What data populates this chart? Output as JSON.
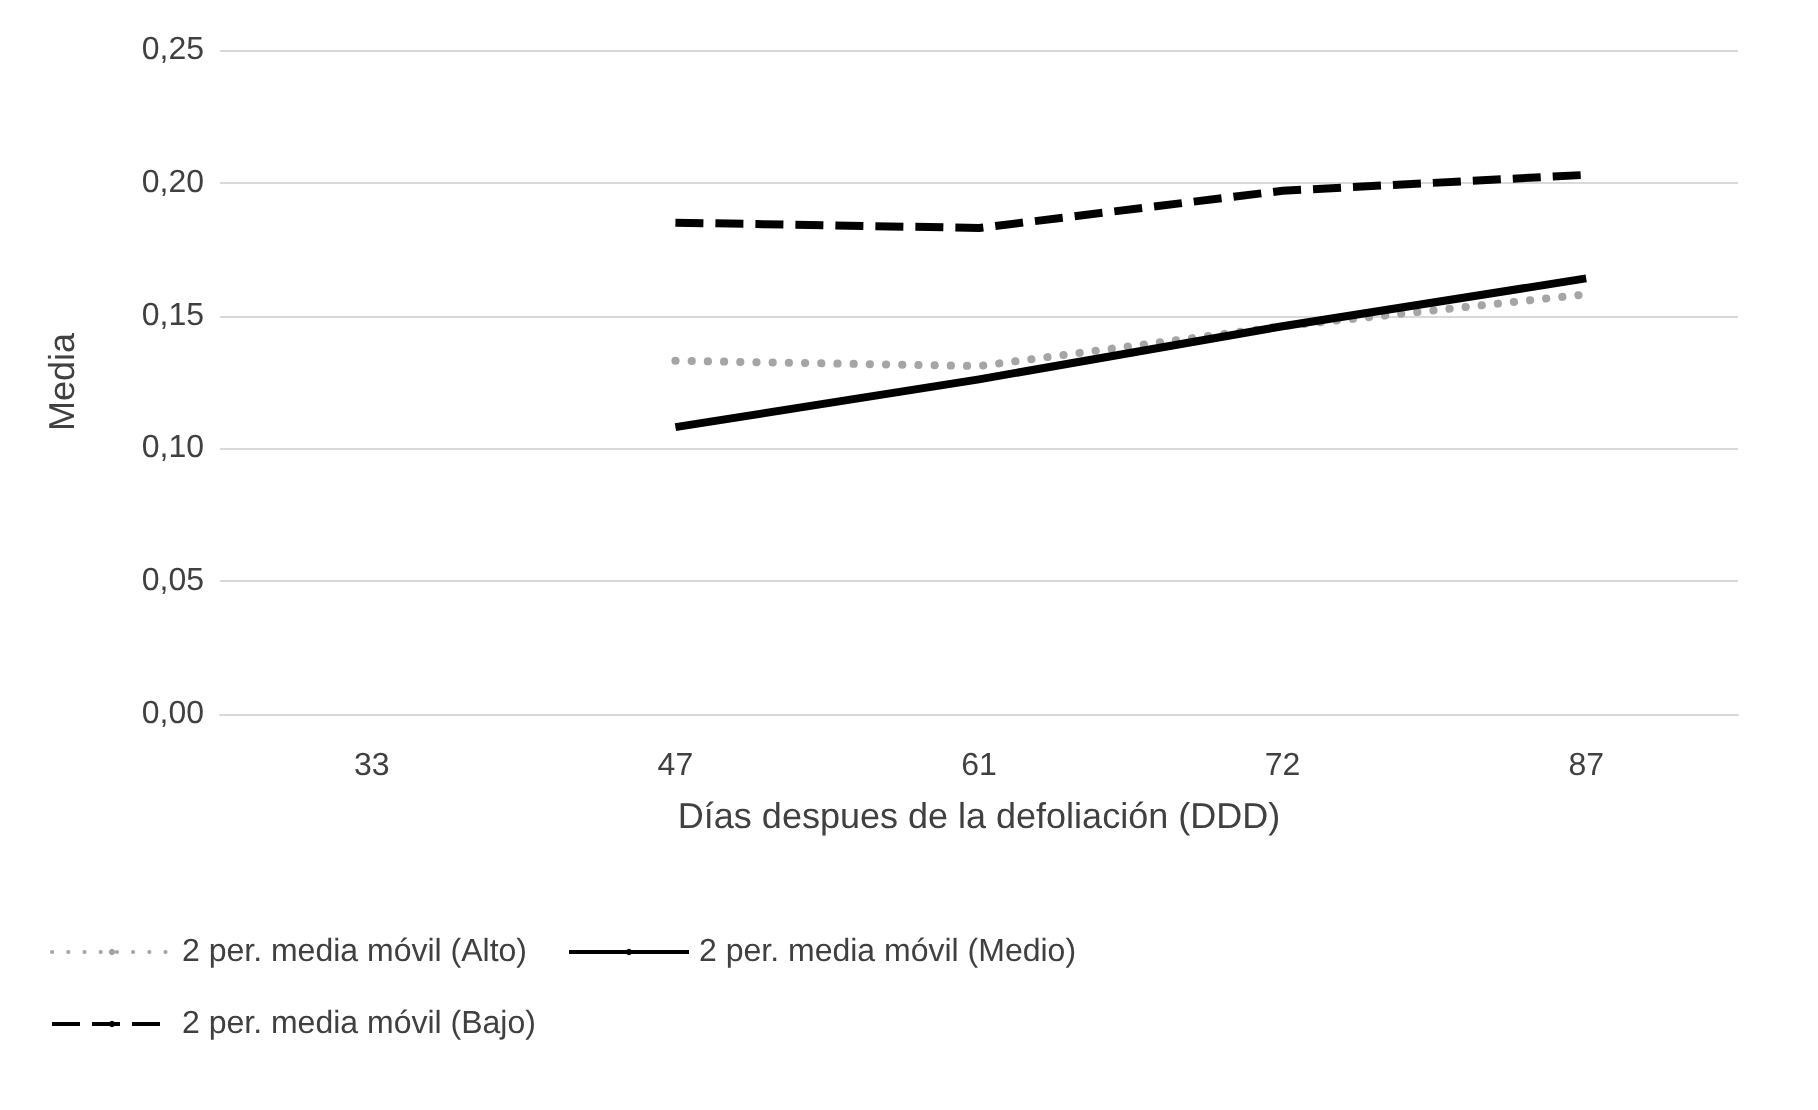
{
  "chart_data": {
    "type": "line",
    "xlabel": "Días despues de la defoliación (DDD)",
    "ylabel": "Media",
    "categories": [
      "33",
      "47",
      "61",
      "72",
      "87"
    ],
    "series": [
      {
        "name": "2 per. media móvil (Alto)",
        "color": "#a5a5a5",
        "line_style": "dotted",
        "values": [
          null,
          0.133,
          0.131,
          0.146,
          0.158
        ]
      },
      {
        "name": "2 per. media móvil (Medio)",
        "color": "#000000",
        "line_style": "solid",
        "values": [
          null,
          0.108,
          0.126,
          0.146,
          0.164
        ]
      },
      {
        "name": "2 per. media móvil (Bajo)",
        "color": "#000000",
        "line_style": "dashed",
        "values": [
          null,
          0.185,
          0.183,
          0.197,
          0.203
        ]
      }
    ],
    "ylim": [
      0,
      0.25
    ],
    "yticks": [
      {
        "value": 0,
        "label": "0,00"
      },
      {
        "value": 0.05,
        "label": "0,05"
      },
      {
        "value": 0.1,
        "label": "0,10"
      },
      {
        "value": 0.15,
        "label": "0,15"
      },
      {
        "value": 0.2,
        "label": "0,20"
      },
      {
        "value": 0.25,
        "label": "0,25"
      }
    ],
    "grid": "y",
    "legend": "bottom",
    "marker": "none"
  }
}
